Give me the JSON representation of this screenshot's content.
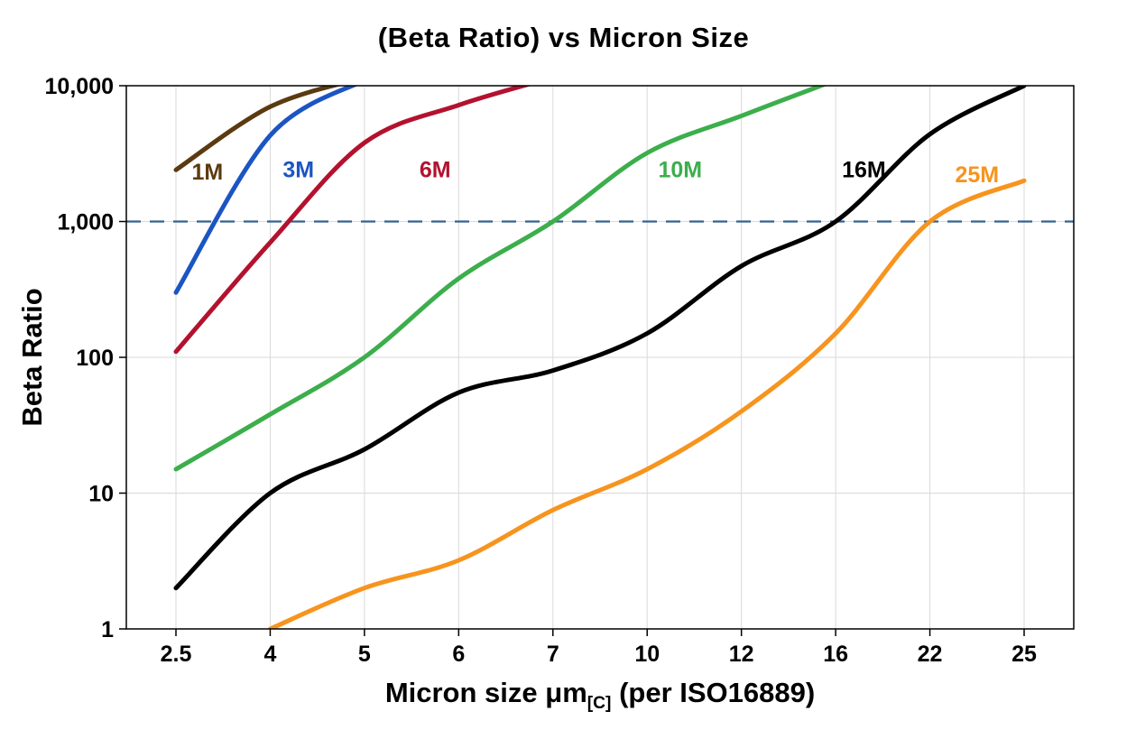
{
  "chart_data": {
    "type": "line",
    "title": "(Beta Ratio) vs Micron Size",
    "ylabel": "Beta Ratio",
    "xlabel": {
      "prefix": "Micron size μm",
      "sub": "[C]",
      "suffix": " (per ISO16889)"
    },
    "x_scale": "categorical",
    "y_scale": "log",
    "ylim": [
      1,
      10000
    ],
    "grid": true,
    "grid_color": "#d9d9d9",
    "border_color": "#000000",
    "categories": [
      2.5,
      4,
      5,
      6,
      7,
      10,
      12,
      16,
      22,
      25
    ],
    "x_tick_labels": [
      "2.5",
      "4",
      "5",
      "6",
      "7",
      "10",
      "12",
      "16",
      "22",
      "25"
    ],
    "y_ticks": [
      {
        "value": 1,
        "label": "1"
      },
      {
        "value": 10,
        "label": "10"
      },
      {
        "value": 100,
        "label": "100"
      },
      {
        "value": 1000,
        "label": "1,000"
      },
      {
        "value": 10000,
        "label": "10,000"
      }
    ],
    "reference_line": {
      "value": 1000,
      "style": "dashed",
      "color": "#35618e"
    },
    "series": [
      {
        "name": "1M",
        "color": "#5b3a10",
        "points": [
          [
            2.5,
            2400
          ],
          [
            4,
            7000
          ],
          [
            5,
            11500
          ]
        ]
      },
      {
        "name": "3M",
        "color": "#1b55c4",
        "points": [
          [
            2.5,
            300
          ],
          [
            4,
            4300
          ],
          [
            5,
            11000
          ]
        ]
      },
      {
        "name": "6M",
        "color": "#b3122f",
        "points": [
          [
            2.5,
            110
          ],
          [
            4,
            700
          ],
          [
            5,
            3800
          ],
          [
            6,
            7200
          ],
          [
            7,
            11500
          ]
        ]
      },
      {
        "name": "10M",
        "color": "#3cae4c",
        "points": [
          [
            2.5,
            15
          ],
          [
            4,
            38
          ],
          [
            5,
            100
          ],
          [
            6,
            380
          ],
          [
            7,
            1000
          ],
          [
            10,
            3200
          ],
          [
            12,
            6000
          ],
          [
            16,
            11000
          ]
        ]
      },
      {
        "name": "16M",
        "color": "#000000",
        "points": [
          [
            2.5,
            2
          ],
          [
            4,
            10
          ],
          [
            5,
            21
          ],
          [
            6,
            55
          ],
          [
            7,
            80
          ],
          [
            10,
            150
          ],
          [
            12,
            470
          ],
          [
            16,
            1000
          ],
          [
            22,
            4400
          ],
          [
            25,
            10000
          ]
        ]
      },
      {
        "name": "25M",
        "color": "#f7941e",
        "points": [
          [
            4,
            1
          ],
          [
            5,
            2
          ],
          [
            6,
            3.2
          ],
          [
            7,
            7.5
          ],
          [
            10,
            15
          ],
          [
            12,
            40
          ],
          [
            16,
            150
          ],
          [
            22,
            1000
          ],
          [
            25,
            2000
          ]
        ]
      }
    ],
    "series_labels": [
      {
        "text": "1M",
        "micron": 3.0,
        "value": 2300,
        "color": "#5b3a10"
      },
      {
        "text": "3M",
        "micron": 4.3,
        "value": 2400,
        "color": "#1b55c4"
      },
      {
        "text": "6M",
        "micron": 5.75,
        "value": 2400,
        "color": "#b3122f"
      },
      {
        "text": "10M",
        "micron": 10.7,
        "value": 2400,
        "color": "#3cae4c"
      },
      {
        "text": "16M",
        "micron": 17.8,
        "value": 2400,
        "color": "#000000"
      },
      {
        "text": "25M",
        "micron": 23.5,
        "value": 2200,
        "color": "#f7941e"
      }
    ]
  }
}
